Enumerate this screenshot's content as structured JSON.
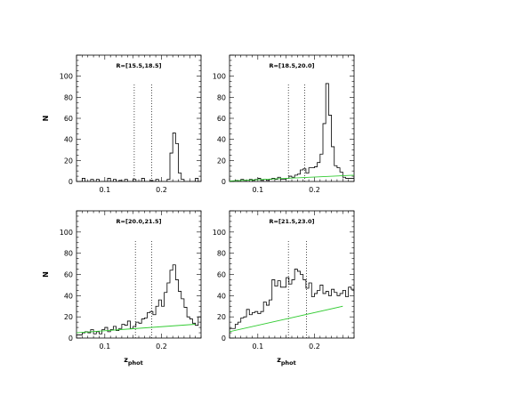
{
  "chart_data": [
    {
      "type": "histogram",
      "title": "R=[15.5,18.5]",
      "ylabel": "N",
      "xlabel": "",
      "xlim": [
        0.05,
        0.27
      ],
      "ylim": [
        0,
        120
      ],
      "xticks": [
        "0.1",
        "0.2"
      ],
      "yticks": [
        "0",
        "20",
        "40",
        "60",
        "80",
        "100"
      ],
      "bin_width": 0.005,
      "bins_start": 0.05,
      "counts": [
        0,
        0,
        3,
        0,
        0,
        2,
        0,
        2,
        0,
        0,
        0,
        3,
        0,
        2,
        0,
        1,
        0,
        2,
        0,
        0,
        2,
        0,
        0,
        3,
        0,
        0,
        1,
        0,
        2,
        0,
        0,
        0,
        2,
        27,
        46,
        36,
        8,
        2,
        0,
        0,
        0,
        0,
        3,
        0,
        0,
        0,
        0,
        0,
        2,
        0,
        8,
        3,
        0,
        0
      ],
      "vlines": [
        0.152,
        0.183
      ],
      "background": null
    },
    {
      "type": "histogram",
      "title": "R=[18.5,20.0]",
      "ylabel": "",
      "xlabel": "",
      "xlim": [
        0.05,
        0.27
      ],
      "ylim": [
        0,
        120
      ],
      "xticks": [
        "0.1",
        "0.2"
      ],
      "yticks": [
        "0",
        "20",
        "40",
        "60",
        "80",
        "100"
      ],
      "bin_width": 0.005,
      "bins_start": 0.05,
      "counts": [
        0,
        0,
        1,
        0,
        2,
        1,
        0,
        2,
        1,
        2,
        3,
        1,
        2,
        1,
        2,
        3,
        2,
        4,
        2,
        2,
        3,
        5,
        4,
        6,
        7,
        11,
        12,
        8,
        13,
        13,
        14,
        18,
        26,
        55,
        93,
        63,
        33,
        15,
        13,
        9,
        4,
        3,
        3,
        3,
        4,
        3,
        2,
        5,
        2,
        6,
        14,
        23,
        12,
        4
      ],
      "vlines": [
        0.154,
        0.183
      ],
      "background": [
        [
          0.05,
          0.5
        ],
        [
          0.27,
          6.0
        ]
      ]
    },
    {
      "type": "histogram",
      "title": "R=[20.0,21.5]",
      "ylabel": "N",
      "xlabel": "zphot",
      "xlim": [
        0.05,
        0.27
      ],
      "ylim": [
        0,
        120
      ],
      "xticks": [
        "0.1",
        "0.2"
      ],
      "yticks": [
        "0",
        "20",
        "40",
        "60",
        "80",
        "100"
      ],
      "bin_width": 0.005,
      "bins_start": 0.05,
      "counts": [
        3,
        3,
        5,
        6,
        5,
        8,
        4,
        6,
        4,
        8,
        10,
        6,
        8,
        11,
        7,
        9,
        13,
        12,
        16,
        9,
        11,
        15,
        14,
        18,
        19,
        24,
        25,
        22,
        30,
        36,
        30,
        43,
        52,
        64,
        69,
        55,
        44,
        37,
        29,
        20,
        18,
        14,
        12,
        20,
        8,
        11,
        5,
        18,
        21,
        22,
        20,
        19,
        25,
        23
      ],
      "vlines": [
        0.154,
        0.183
      ],
      "background": [
        [
          0.05,
          5.0
        ],
        [
          0.26,
          13.0
        ]
      ]
    },
    {
      "type": "histogram",
      "title": "R=[21.5,23.0]",
      "ylabel": "",
      "xlabel": "zphot",
      "xlim": [
        0.05,
        0.27
      ],
      "ylim": [
        0,
        120
      ],
      "xticks": [
        "0.1",
        "0.2"
      ],
      "yticks": [
        "0",
        "20",
        "40",
        "60",
        "80",
        "100"
      ],
      "bin_width": 0.005,
      "bins_start": 0.05,
      "counts": [
        9,
        9,
        13,
        15,
        19,
        20,
        27,
        22,
        24,
        25,
        23,
        25,
        34,
        31,
        36,
        55,
        49,
        54,
        48,
        48,
        57,
        51,
        55,
        65,
        63,
        60,
        55,
        47,
        52,
        39,
        42,
        45,
        50,
        42,
        44,
        40,
        46,
        43,
        40,
        42,
        45,
        39,
        48,
        46,
        42,
        47,
        45,
        40,
        27,
        31,
        30,
        28,
        24,
        26
      ],
      "vlines": [
        0.154,
        0.186
      ],
      "background": [
        [
          0.05,
          6.0
        ],
        [
          0.25,
          30.0
        ]
      ]
    }
  ]
}
